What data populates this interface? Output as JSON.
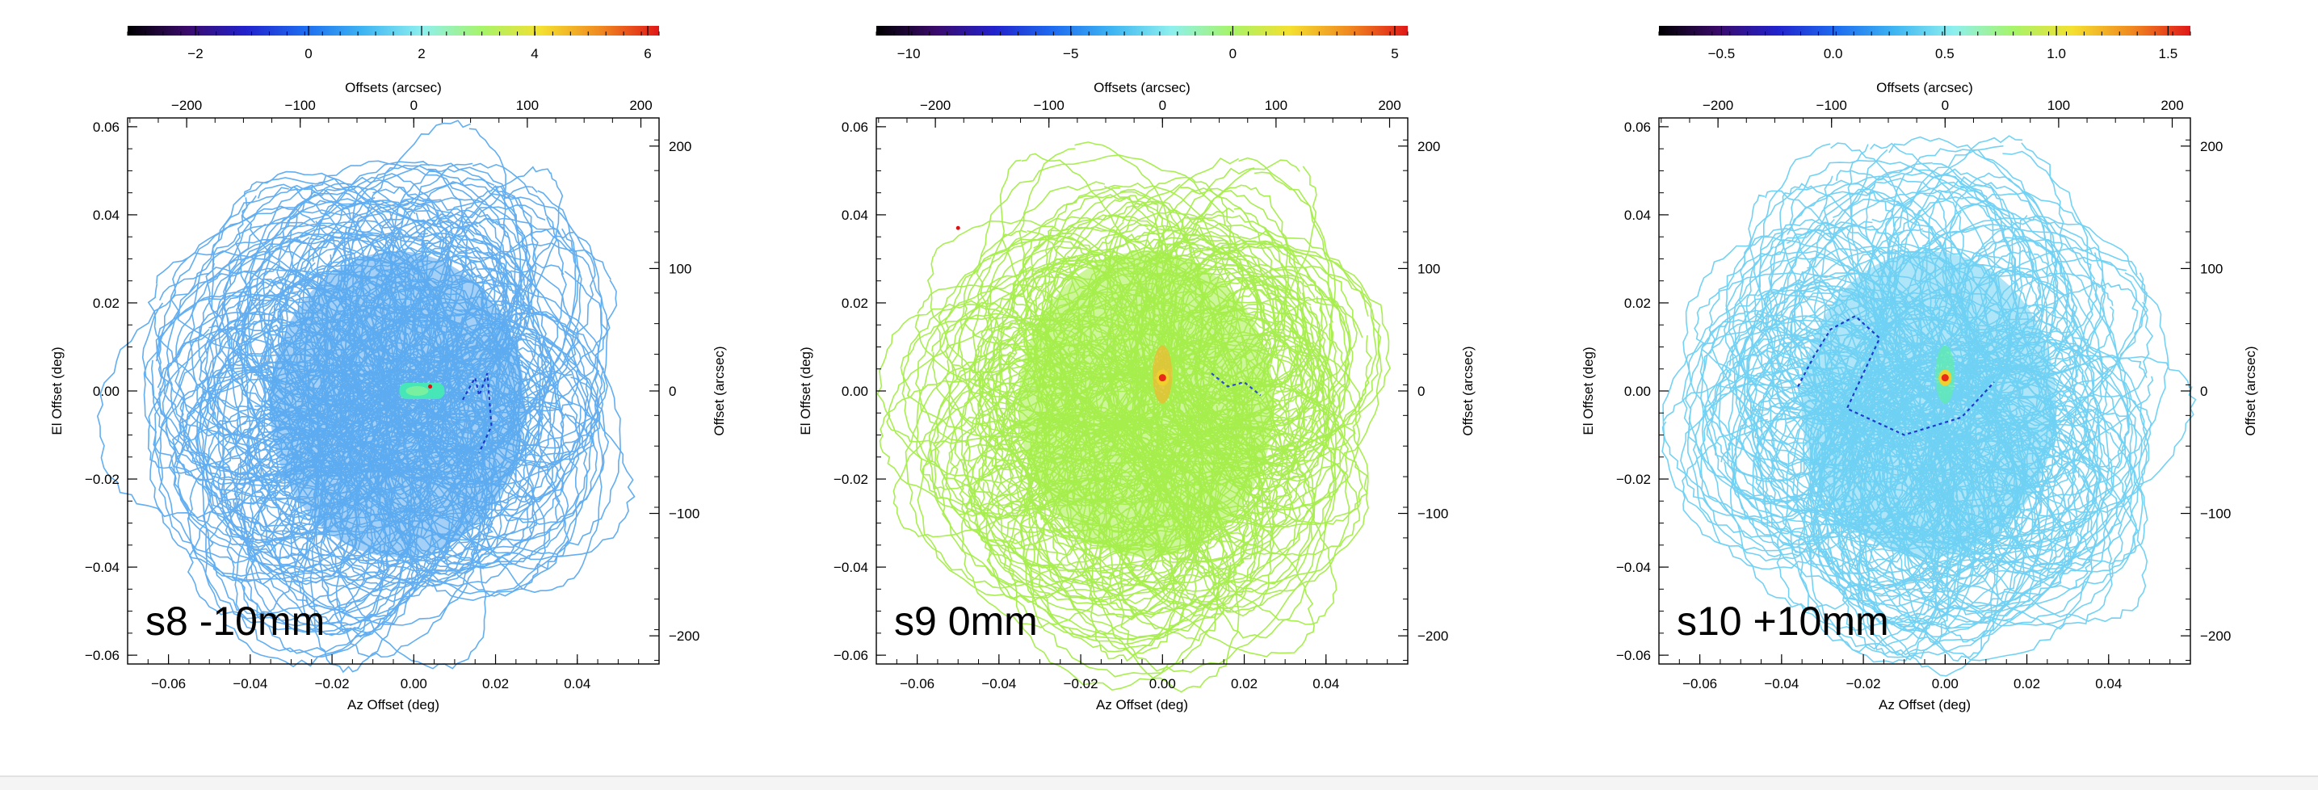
{
  "colorscale": {
    "stops": [
      "#000000",
      "#3a0a6a",
      "#2222cc",
      "#1e6cf0",
      "#3fb6f2",
      "#8ef0ee",
      "#a6f46a",
      "#f4e030",
      "#f08a20",
      "#e01818"
    ],
    "marker_color": "#e01010"
  },
  "chart_data": [
    {
      "type": "scatter",
      "label": "s8 -10mm",
      "xlabel": "Az Offset (deg)",
      "ylabel": "El Offset (deg)",
      "top_label": "Offsets (arcsec)",
      "right_label": "Offset (arcsec)",
      "xlim": [
        -0.07,
        0.06
      ],
      "ylim": [
        -0.062,
        0.062
      ],
      "top_lim": [
        -252,
        216
      ],
      "right_lim": [
        -223,
        223
      ],
      "xticks": [
        -0.06,
        -0.04,
        -0.02,
        0.0,
        0.02,
        0.04
      ],
      "xtick_labels": [
        "−0.06",
        "−0.04",
        "−0.02",
        "0.00",
        "0.02",
        "0.04"
      ],
      "yticks": [
        -0.06,
        -0.04,
        -0.02,
        0.0,
        0.02,
        0.04,
        0.06
      ],
      "ytick_labels": [
        "−0.06",
        "−0.04",
        "−0.02",
        "0.00",
        "0.02",
        "0.04",
        "0.06"
      ],
      "top_ticks": [
        -200,
        -100,
        0,
        100,
        200
      ],
      "top_tick_labels": [
        "−200",
        "−100",
        "0",
        "100",
        "200"
      ],
      "right_ticks": [
        200,
        100,
        0,
        -100,
        -200
      ],
      "right_tick_labels": [
        "200",
        "100",
        "0",
        "−100",
        "−200"
      ],
      "colorbar_range": [
        -3.2,
        6.2
      ],
      "colorbar_ticks": [
        -2,
        0,
        2,
        4,
        6
      ],
      "colorbar_tick_labels": [
        "−2",
        "0",
        "2",
        "4",
        "6"
      ],
      "map_color": "#5aaaf0",
      "source": {
        "x": 0.002,
        "y": 0.0,
        "color": "#46e6b8",
        "elongated": true,
        "core_color": "#78f0a0"
      },
      "trail": [
        [
          0.012,
          -0.002
        ],
        [
          0.015,
          0.003
        ],
        [
          0.016,
          -0.001
        ],
        [
          0.018,
          0.004
        ],
        [
          0.019,
          -0.008
        ],
        [
          0.016,
          -0.014
        ]
      ],
      "trail_color": "#1a3acc",
      "red_dots": [
        [
          0.004,
          0.001
        ]
      ]
    },
    {
      "type": "scatter",
      "label": "s9 0mm",
      "xlabel": "Az Offset (deg)",
      "ylabel": "El Offset (deg)",
      "top_label": "Offsets (arcsec)",
      "right_label": "Offset (arcsec)",
      "xlim": [
        -0.07,
        0.06
      ],
      "ylim": [
        -0.062,
        0.062
      ],
      "top_lim": [
        -252,
        216
      ],
      "right_lim": [
        -223,
        223
      ],
      "xticks": [
        -0.06,
        -0.04,
        -0.02,
        0.0,
        0.02,
        0.04
      ],
      "xtick_labels": [
        "−0.06",
        "−0.04",
        "−0.02",
        "0.00",
        "0.02",
        "0.04"
      ],
      "yticks": [
        -0.06,
        -0.04,
        -0.02,
        0.0,
        0.02,
        0.04,
        0.06
      ],
      "ytick_labels": [
        "−0.06",
        "−0.04",
        "−0.02",
        "0.00",
        "0.02",
        "0.04",
        "0.06"
      ],
      "top_ticks": [
        -200,
        -100,
        0,
        100,
        200
      ],
      "top_tick_labels": [
        "−200",
        "−100",
        "0",
        "100",
        "200"
      ],
      "right_ticks": [
        200,
        100,
        0,
        -100,
        -200
      ],
      "right_tick_labels": [
        "200",
        "100",
        "0",
        "−100",
        "−200"
      ],
      "colorbar_range": [
        -11,
        5.4
      ],
      "colorbar_ticks": [
        -10,
        -5,
        0,
        5
      ],
      "colorbar_tick_labels": [
        "−10",
        "−5",
        "0",
        "5"
      ],
      "map_color": "#a4ee48",
      "source": {
        "x": 0.0,
        "y": 0.003,
        "color": "#f2b830",
        "elongated": false,
        "core_color": "#e82a18"
      },
      "trail": [
        [
          0.012,
          0.004
        ],
        [
          0.016,
          0.001
        ],
        [
          0.02,
          0.002
        ],
        [
          0.024,
          -0.001
        ]
      ],
      "trail_color": "#2a4ad0",
      "red_dots": [
        [
          -0.05,
          0.037
        ]
      ]
    },
    {
      "type": "scatter",
      "label": "s10 +10mm",
      "xlabel": "Az Offset (deg)",
      "ylabel": "El Offset (deg)",
      "top_label": "Offsets (arcsec)",
      "right_label": "Offset (arcsec)",
      "xlim": [
        -0.07,
        0.06
      ],
      "ylim": [
        -0.062,
        0.062
      ],
      "top_lim": [
        -252,
        216
      ],
      "right_lim": [
        -223,
        223
      ],
      "xticks": [
        -0.06,
        -0.04,
        -0.02,
        0.0,
        0.02,
        0.04
      ],
      "xtick_labels": [
        "−0.06",
        "−0.04",
        "−0.02",
        "0.00",
        "0.02",
        "0.04"
      ],
      "yticks": [
        -0.06,
        -0.04,
        -0.02,
        0.0,
        0.02,
        0.04,
        0.06
      ],
      "ytick_labels": [
        "−0.06",
        "−0.04",
        "−0.02",
        "0.00",
        "0.02",
        "0.04",
        "0.06"
      ],
      "top_ticks": [
        -200,
        -100,
        0,
        100,
        200
      ],
      "top_tick_labels": [
        "−200",
        "−100",
        "0",
        "100",
        "200"
      ],
      "right_ticks": [
        200,
        100,
        0,
        -100,
        -200
      ],
      "right_tick_labels": [
        "200",
        "100",
        "0",
        "−100",
        "−200"
      ],
      "colorbar_range": [
        -0.78,
        1.6
      ],
      "colorbar_ticks": [
        -0.5,
        0.0,
        0.5,
        1.0,
        1.5
      ],
      "colorbar_tick_labels": [
        "−0.5",
        "0.0",
        "0.5",
        "1.0",
        "1.5"
      ],
      "map_color": "#6cd0f4",
      "source": {
        "x": 0.0,
        "y": 0.003,
        "color": "#5ef0a8",
        "elongated": false,
        "core_color": "#e82a18"
      },
      "trail": [
        [
          -0.036,
          0.001
        ],
        [
          -0.032,
          0.008
        ],
        [
          -0.028,
          0.014
        ],
        [
          -0.022,
          0.017
        ],
        [
          -0.016,
          0.012
        ],
        [
          -0.024,
          -0.004
        ],
        [
          -0.01,
          -0.01
        ],
        [
          0.004,
          -0.006
        ],
        [
          0.012,
          0.002
        ]
      ],
      "trail_color": "#1c3ad0",
      "red_dots": []
    }
  ]
}
